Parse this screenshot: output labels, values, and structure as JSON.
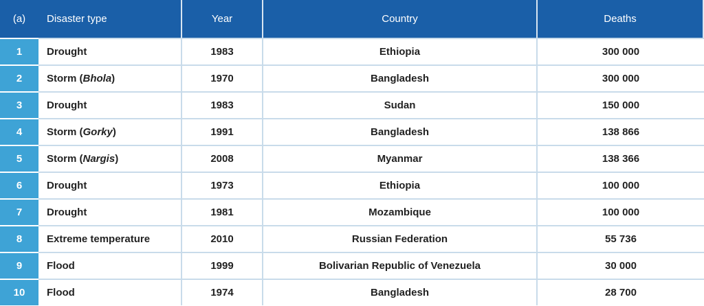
{
  "table": {
    "header": [
      "(a)",
      "Disaster type",
      "Year",
      "Country",
      "Deaths"
    ],
    "rows": [
      [
        1,
        [
          "Drought"
        ],
        1983,
        "Ethiopia",
        "300 000"
      ],
      [
        2,
        [
          "Storm (",
          "Bhola",
          ")"
        ],
        1970,
        "Bangladesh",
        "300 000"
      ],
      [
        3,
        [
          "Drought"
        ],
        1983,
        "Sudan",
        "150 000"
      ],
      [
        4,
        [
          "Storm (",
          "Gorky",
          ")"
        ],
        1991,
        "Bangladesh",
        "138 866"
      ],
      [
        5,
        [
          "Storm (",
          "Nargis",
          ")"
        ],
        2008,
        "Myanmar",
        "138 366"
      ],
      [
        6,
        [
          "Drought"
        ],
        1973,
        "Ethiopia",
        "100 000"
      ],
      [
        7,
        [
          "Drought"
        ],
        1981,
        "Mozambique",
        "100 000"
      ],
      [
        8,
        [
          "Extreme temperature"
        ],
        2010,
        "Russian Federation",
        "55 736"
      ],
      [
        9,
        [
          "Flood"
        ],
        1999,
        "Bolivarian Republic of Venezuela",
        "30 000"
      ],
      [
        10,
        [
          "Flood"
        ],
        1974,
        "Bangladesh",
        "28 700"
      ]
    ]
  }
}
